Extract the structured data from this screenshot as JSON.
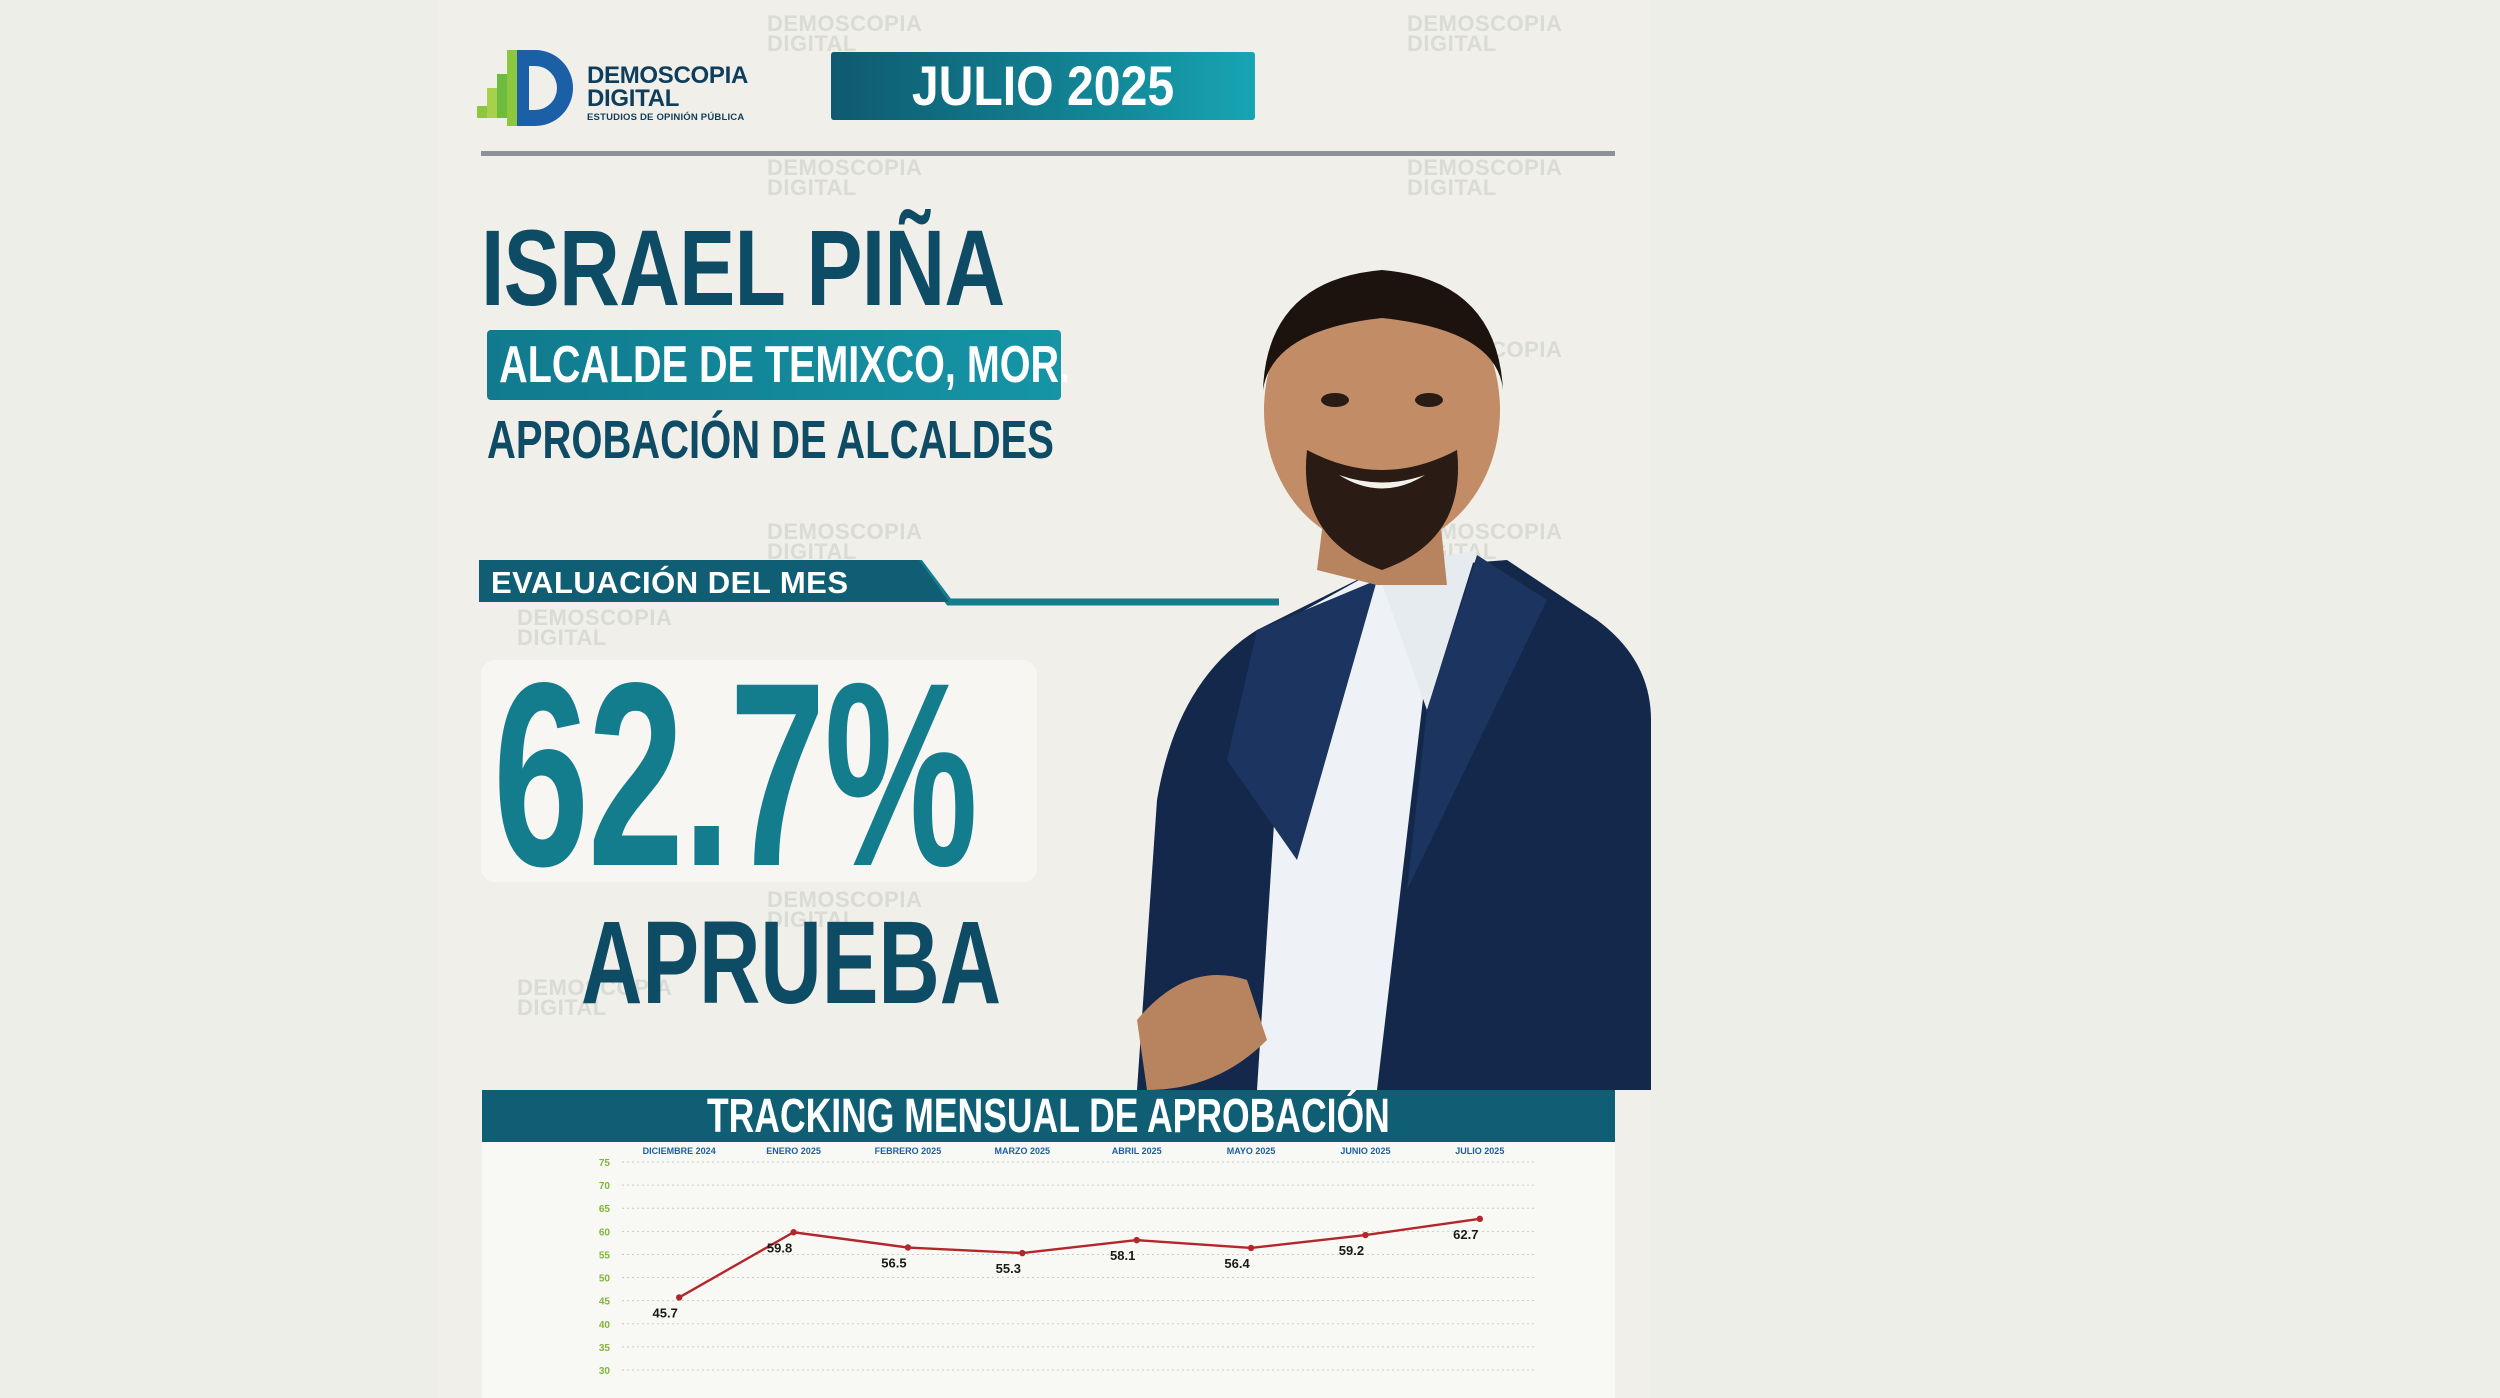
{
  "brand": {
    "name_line1": "DEMOSCOPIA",
    "name_line2": "DIGITAL",
    "tagline": "ESTUDIOS DE OPINIÓN PÚBLICA",
    "colors": {
      "navy": "#0e4c66",
      "teal": "#137c8d",
      "green": "#8dc63f",
      "blue": "#1b5fa6"
    }
  },
  "header": {
    "date_label": "JULIO 2025"
  },
  "subject": {
    "name": "ISRAEL PIÑA",
    "role": "ALCALDE DE TEMIXCO, MOR.",
    "survey": "APROBACIÓN DE ALCALDES"
  },
  "evaluation": {
    "label": "EVALUACIÓN DEL MES",
    "value": "62.7%",
    "caption": "APRUEBA"
  },
  "tracking": {
    "title": "TRACKING MENSUAL DE APROBACIÓN"
  },
  "chart_data": {
    "type": "line",
    "title": "TRACKING MENSUAL DE APROBACIÓN",
    "categories": [
      "DICIEMBRE 2024",
      "ENERO 2025",
      "FEBRERO 2025",
      "MARZO 2025",
      "ABRIL 2025",
      "MAYO 2025",
      "JUNIO 2025",
      "JULIO 2025"
    ],
    "series": [
      {
        "values": [
          45.7,
          59.8,
          56.5,
          55.3,
          58.1,
          56.4,
          59.2,
          62.7
        ],
        "color": "#b3262a"
      }
    ],
    "data_labels": [
      "45.7",
      "59.8",
      "56.5",
      "55.3",
      "58.1",
      "56.4",
      "59.2",
      "62.7"
    ],
    "ylim": [
      30,
      75
    ],
    "yticks": [
      30,
      35,
      40,
      45,
      50,
      55,
      60,
      65,
      70,
      75
    ],
    "ytick_labels": [
      "30",
      "35",
      "40",
      "45",
      "50",
      "55",
      "60",
      "65",
      "70",
      "75"
    ],
    "grid": true,
    "legend": "none"
  }
}
